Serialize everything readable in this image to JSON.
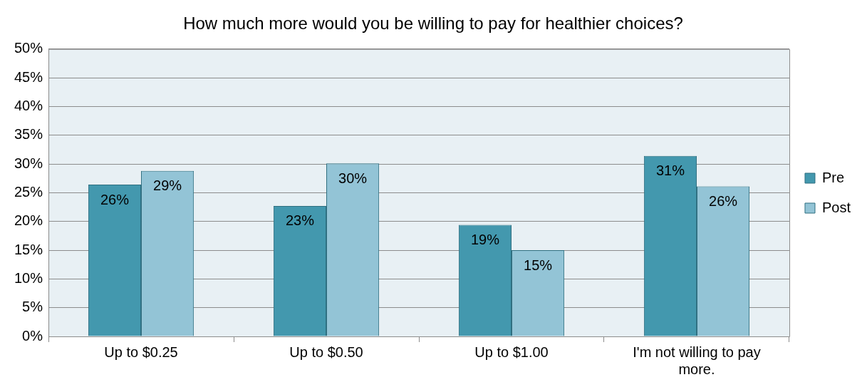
{
  "chart_data": {
    "type": "bar",
    "title": "How much more would you be willing to pay for healthier choices?",
    "categories": [
      "Up to $0.25",
      "Up to $0.50",
      "Up to $1.00",
      "I'm not willing to pay more."
    ],
    "series": [
      {
        "name": "Pre",
        "color": "#4398ae",
        "values": [
          26.4,
          22.7,
          19.4,
          31.4
        ],
        "value_labels": [
          "26%",
          "23%",
          "19%",
          "31%"
        ]
      },
      {
        "name": "Post",
        "color": "#93c4d6",
        "values": [
          28.8,
          30.1,
          15,
          26.1
        ],
        "value_labels": [
          "29%",
          "30%",
          "15%",
          "26%"
        ]
      }
    ],
    "ylim": [
      0,
      50
    ],
    "yticks": [
      {
        "value": 0,
        "label": "0%"
      },
      {
        "value": 5,
        "label": "5%"
      },
      {
        "value": 10,
        "label": "10%"
      },
      {
        "value": 15,
        "label": "15%"
      },
      {
        "value": 20,
        "label": "20%"
      },
      {
        "value": 25,
        "label": "25%"
      },
      {
        "value": 30,
        "label": "30%"
      },
      {
        "value": 35,
        "label": "35%"
      },
      {
        "value": 40,
        "label": "40%"
      },
      {
        "value": 45,
        "label": "45%"
      },
      {
        "value": 50,
        "label": "50%"
      }
    ],
    "grid": "y",
    "legend": "right"
  }
}
